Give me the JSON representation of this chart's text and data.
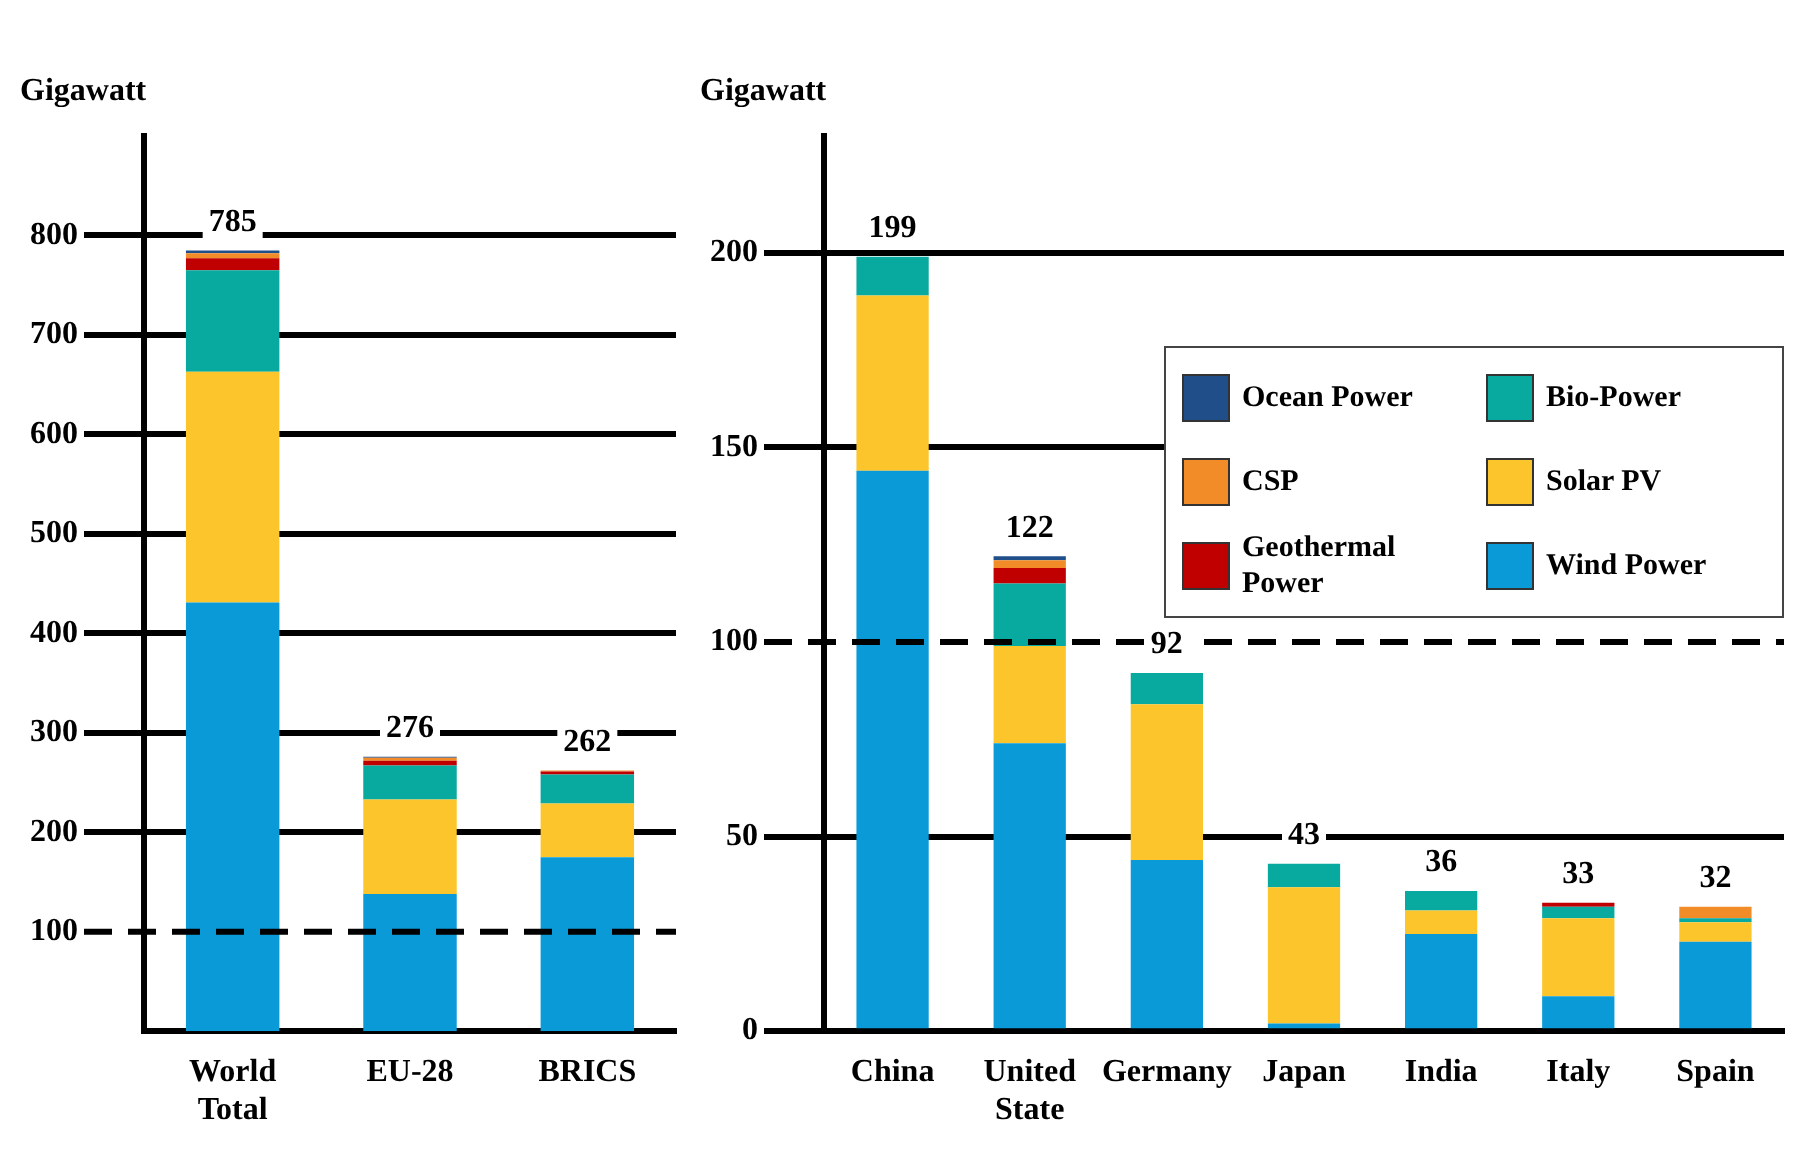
{
  "chart_data": [
    {
      "type": "bar",
      "ylabel": "Gigawatt",
      "categories": [
        "World Total",
        "EU-28",
        "BRICS"
      ],
      "stacked": true,
      "series": [
        {
          "color": "#0a9ad8",
          "values": [
            431,
            138,
            175
          ]
        },
        {
          "color": "#fcc52c",
          "values": [
            232,
            95,
            54
          ]
        },
        {
          "color": "#08a99e",
          "values": [
            102,
            34,
            29
          ]
        },
        {
          "color": "#c00000",
          "values": [
            12,
            5,
            3
          ]
        },
        {
          "color": "#f28c28",
          "values": [
            5,
            3,
            1
          ]
        },
        {
          "color": "#1f4e89",
          "values": [
            3,
            1,
            0
          ]
        }
      ],
      "totals": [
        "785",
        "276",
        "262"
      ],
      "ylim": [
        0,
        900
      ],
      "yticks": [
        100,
        200,
        300,
        400,
        500,
        600,
        700,
        800
      ],
      "grid": "y",
      "legend": false,
      "ref_lines": [
        {
          "axis": "y",
          "value": 100,
          "line_style": "dashed",
          "color": "#000000"
        }
      ]
    },
    {
      "type": "bar",
      "ylabel": "Gigawatt",
      "categories": [
        "China",
        "United State",
        "Germany",
        "Japan",
        "India",
        "Italy",
        "Spain"
      ],
      "stacked": true,
      "series": [
        {
          "name": "Wind Power",
          "color": "#0a9ad8",
          "values": [
            144,
            74,
            44,
            2,
            25,
            9,
            23
          ]
        },
        {
          "name": "Solar PV",
          "color": "#fcc52c",
          "values": [
            45,
            25,
            40,
            35,
            6,
            20,
            5
          ]
        },
        {
          "name": "Bio-Power",
          "color": "#08a99e",
          "values": [
            10,
            16,
            8,
            6,
            5,
            3,
            1
          ]
        },
        {
          "name": "Geothermal Power",
          "color": "#c00000",
          "values": [
            0,
            4,
            0,
            0,
            0,
            1,
            0
          ]
        },
        {
          "name": "CSP",
          "color": "#f28c28",
          "values": [
            0,
            2,
            0,
            0,
            0,
            0,
            3
          ]
        },
        {
          "name": "Ocean Power",
          "color": "#1f4e89",
          "values": [
            0,
            1,
            0,
            0,
            0,
            0,
            0
          ]
        }
      ],
      "totals": [
        "199",
        "122",
        "92",
        "43",
        "36",
        "33",
        "32"
      ],
      "ylim": [
        0,
        230
      ],
      "yticks": [
        0,
        50,
        100,
        150,
        200
      ],
      "grid": "y",
      "legend": "top right",
      "ref_lines": [
        {
          "axis": "y",
          "value": 100,
          "line_style": "dashed",
          "color": "#000000"
        }
      ]
    }
  ]
}
